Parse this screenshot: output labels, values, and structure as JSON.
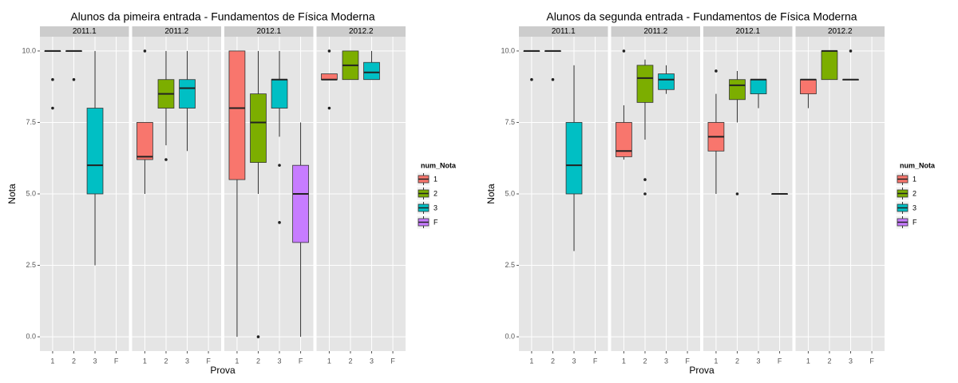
{
  "chart_data": [
    {
      "type": "boxplot",
      "title": "Alunos da pimeira entrada -  Fundamentos de Física Moderna",
      "xlabel": "Prova",
      "ylabel": "Nota",
      "legend_title": "num_Nota",
      "categories": [
        "1",
        "2",
        "3",
        "F"
      ],
      "series": [
        {
          "name": "1",
          "color": "#F8766D"
        },
        {
          "name": "2",
          "color": "#7CAE00"
        },
        {
          "name": "3",
          "color": "#00BFC4"
        },
        {
          "name": "F",
          "color": "#C77CFF"
        }
      ],
      "ylim": [
        -0.5,
        10.5
      ],
      "yticks": [
        {
          "value": 0,
          "label": "0.0"
        },
        2.5,
        {
          "value": 5,
          "label": "5.0"
        },
        7.5,
        {
          "value": 10,
          "label": "10.0"
        }
      ],
      "grid": true,
      "facets": [
        {
          "name": "2011.1",
          "boxes": [
            {
              "min": 10,
              "q1": 10,
              "median": 10,
              "q3": 10,
              "max": 10,
              "outliers": [
                9,
                8
              ]
            },
            {
              "min": 10,
              "q1": 10,
              "median": 10,
              "q3": 10,
              "max": 10,
              "outliers": [
                9
              ]
            },
            {
              "min": 2.5,
              "q1": 5,
              "median": 6,
              "q3": 8,
              "max": 10,
              "outliers": []
            },
            null
          ]
        },
        {
          "name": "2011.2",
          "boxes": [
            {
              "min": 5,
              "q1": 6.2,
              "median": 6.3,
              "q3": 7.5,
              "max": 7.5,
              "outliers": [
                10
              ]
            },
            {
              "min": 6.7,
              "q1": 8,
              "median": 8.5,
              "q3": 9,
              "max": 10,
              "outliers": [
                6.2
              ]
            },
            {
              "min": 6.5,
              "q1": 8,
              "median": 8.7,
              "q3": 9,
              "max": 10,
              "outliers": []
            },
            null
          ]
        },
        {
          "name": "2012.1",
          "boxes": [
            {
              "min": 0,
              "q1": 5.5,
              "median": 8,
              "q3": 10,
              "max": 10,
              "outliers": []
            },
            {
              "min": 5,
              "q1": 6.1,
              "median": 7.5,
              "q3": 8.5,
              "max": 10,
              "outliers": [
                0
              ]
            },
            {
              "min": 7,
              "q1": 8,
              "median": 9,
              "q3": 9,
              "max": 10,
              "outliers": [
                6,
                4
              ]
            },
            {
              "min": 0,
              "q1": 3.3,
              "median": 5,
              "q3": 6,
              "max": 7.5,
              "outliers": []
            }
          ]
        },
        {
          "name": "2012.2",
          "boxes": [
            {
              "min": 9,
              "q1": 9,
              "median": 9,
              "q3": 9.2,
              "max": 9.2,
              "outliers": [
                10,
                8
              ]
            },
            {
              "min": 9,
              "q1": 9,
              "median": 9.5,
              "q3": 10,
              "max": 10,
              "outliers": []
            },
            {
              "min": 9,
              "q1": 9,
              "median": 9.25,
              "q3": 9.6,
              "max": 10,
              "outliers": []
            },
            null
          ]
        }
      ]
    },
    {
      "type": "boxplot",
      "title": "Alunos da segunda entrada -  Fundamentos de Física Moderna",
      "xlabel": "Prova",
      "ylabel": "Nota",
      "legend_title": "num_Nota",
      "categories": [
        "1",
        "2",
        "3",
        "F"
      ],
      "series": [
        {
          "name": "1",
          "color": "#F8766D"
        },
        {
          "name": "2",
          "color": "#7CAE00"
        },
        {
          "name": "3",
          "color": "#00BFC4"
        },
        {
          "name": "F",
          "color": "#C77CFF"
        }
      ],
      "ylim": [
        -0.5,
        10.5
      ],
      "yticks": [
        {
          "value": 0,
          "label": "0.0"
        },
        2.5,
        {
          "value": 5,
          "label": "5.0"
        },
        7.5,
        {
          "value": 10,
          "label": "10.0"
        }
      ],
      "grid": true,
      "facets": [
        {
          "name": "2011.1",
          "boxes": [
            {
              "min": 10,
              "q1": 10,
              "median": 10,
              "q3": 10,
              "max": 10,
              "outliers": [
                9
              ]
            },
            {
              "min": 10,
              "q1": 10,
              "median": 10,
              "q3": 10,
              "max": 10,
              "outliers": [
                9
              ]
            },
            {
              "min": 3,
              "q1": 5,
              "median": 6,
              "q3": 7.5,
              "max": 9.5,
              "outliers": []
            },
            null
          ]
        },
        {
          "name": "2011.2",
          "boxes": [
            {
              "min": 6.2,
              "q1": 6.3,
              "median": 6.5,
              "q3": 7.5,
              "max": 8.1,
              "outliers": [
                10
              ]
            },
            {
              "min": 6.9,
              "q1": 8.2,
              "median": 9.05,
              "q3": 9.5,
              "max": 9.7,
              "outliers": [
                5.5,
                5
              ]
            },
            {
              "min": 8.5,
              "q1": 8.65,
              "median": 9,
              "q3": 9.2,
              "max": 9.5,
              "outliers": []
            },
            null
          ]
        },
        {
          "name": "2012.1",
          "boxes": [
            {
              "min": 5,
              "q1": 6.5,
              "median": 7,
              "q3": 7.5,
              "max": 8.5,
              "outliers": [
                9.3
              ]
            },
            {
              "min": 7.5,
              "q1": 8.3,
              "median": 8.8,
              "q3": 9,
              "max": 9.3,
              "outliers": [
                5
              ]
            },
            {
              "min": 8,
              "q1": 8.5,
              "median": 9,
              "q3": 9,
              "max": 9,
              "outliers": []
            },
            {
              "min": 5,
              "q1": 5,
              "median": 5,
              "q3": 5,
              "max": 5,
              "outliers": []
            }
          ]
        },
        {
          "name": "2012.2",
          "boxes": [
            {
              "min": 8,
              "q1": 8.5,
              "median": 9,
              "q3": 9,
              "max": 9,
              "outliers": []
            },
            {
              "min": 9,
              "q1": 9,
              "median": 10,
              "q3": 10,
              "max": 10,
              "outliers": []
            },
            {
              "min": 9,
              "q1": 9,
              "median": 9,
              "q3": 9,
              "max": 9,
              "outliers": [
                10
              ]
            },
            null
          ]
        }
      ]
    }
  ]
}
